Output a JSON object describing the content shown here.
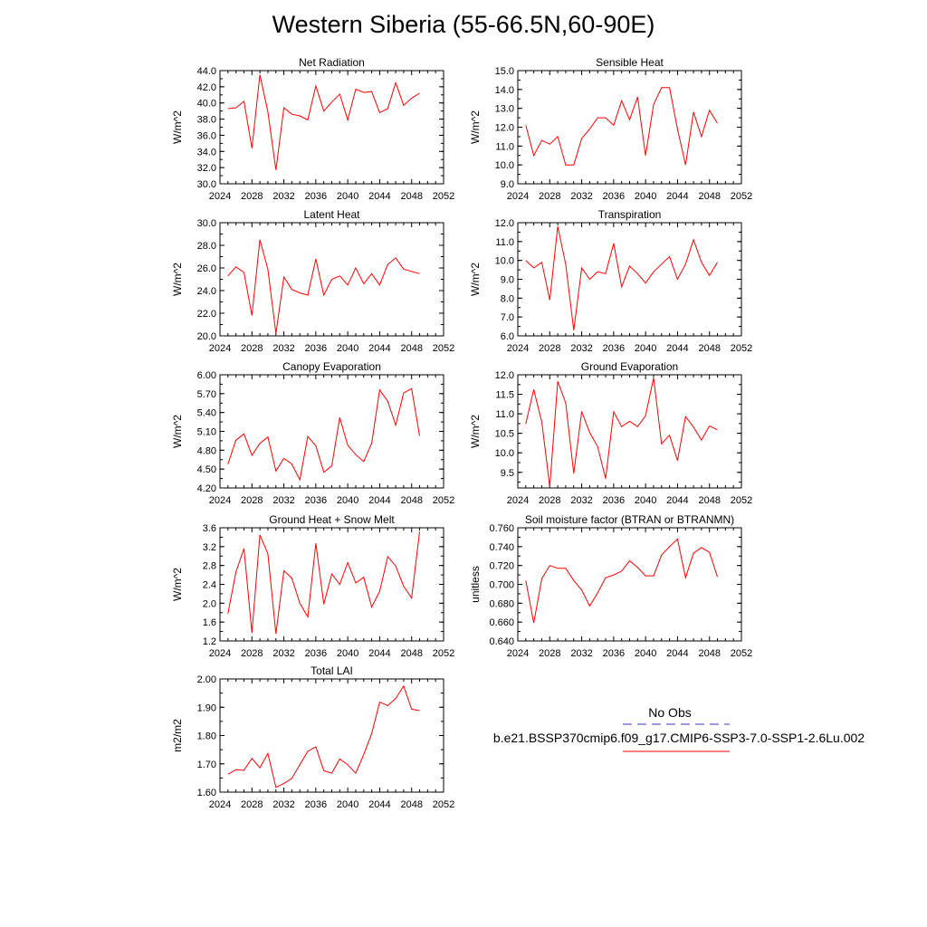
{
  "title": "Western Siberia (55-66.5N,60-90E)",
  "legend": {
    "obs_label": "No Obs",
    "obs_color": "#3a3acc",
    "model_label": "b.e21.BSSP370cmip6.f09_g17.CMIP6-SSP3-7.0-SSP1-2.6Lu.002",
    "model_color": "#ff0000"
  },
  "chart_data": [
    {
      "type": "line",
      "title": "Net Radiation",
      "ylabel": "W/m^2",
      "xlim": [
        2024,
        2052
      ],
      "ylim": [
        30.0,
        44.0
      ],
      "xticks": [
        "2024",
        "2028",
        "2032",
        "2036",
        "2040",
        "2044",
        "2048",
        "2052"
      ],
      "yticks": [
        "30.0",
        "32.0",
        "34.0",
        "36.0",
        "38.0",
        "40.0",
        "42.0",
        "44.0"
      ],
      "x": [
        2025,
        2026,
        2027,
        2028,
        2029,
        2030,
        2031,
        2032,
        2033,
        2034,
        2035,
        2036,
        2037,
        2038,
        2039,
        2040,
        2041,
        2042,
        2043,
        2044,
        2045,
        2046,
        2047,
        2048,
        2049
      ],
      "series": [
        {
          "color": "#ff0000",
          "values": [
            39.3,
            39.4,
            40.2,
            34.4,
            43.5,
            38.9,
            31.7,
            39.4,
            38.6,
            38.4,
            37.9,
            42.1,
            39.0,
            40.1,
            41.1,
            37.9,
            41.7,
            41.3,
            41.4,
            38.8,
            39.3,
            42.5,
            39.7,
            40.6,
            41.2
          ]
        }
      ]
    },
    {
      "type": "line",
      "title": "Sensible Heat",
      "ylabel": "W/m^2",
      "xlim": [
        2024,
        2052
      ],
      "ylim": [
        9.0,
        15.0
      ],
      "xticks": [
        "2024",
        "2028",
        "2032",
        "2036",
        "2040",
        "2044",
        "2048",
        "2052"
      ],
      "yticks": [
        "9.0",
        "10.0",
        "11.0",
        "12.0",
        "13.0",
        "14.0",
        "15.0"
      ],
      "x": [
        2025,
        2026,
        2027,
        2028,
        2029,
        2030,
        2031,
        2032,
        2033,
        2034,
        2035,
        2036,
        2037,
        2038,
        2039,
        2040,
        2041,
        2042,
        2043,
        2044,
        2045,
        2046,
        2047,
        2048,
        2049
      ],
      "series": [
        {
          "color": "#ff0000",
          "values": [
            12.1,
            10.5,
            11.3,
            11.1,
            11.5,
            10.0,
            10.0,
            11.4,
            11.9,
            12.5,
            12.5,
            12.1,
            13.4,
            12.4,
            13.6,
            10.5,
            13.2,
            14.1,
            14.1,
            11.9,
            10.0,
            12.8,
            11.5,
            12.9,
            12.2
          ]
        }
      ]
    },
    {
      "type": "line",
      "title": "Latent Heat",
      "ylabel": "W/m^2",
      "xlim": [
        2024,
        2052
      ],
      "ylim": [
        20.0,
        30.0
      ],
      "xticks": [
        "2024",
        "2028",
        "2032",
        "2036",
        "2040",
        "2044",
        "2048",
        "2052"
      ],
      "yticks": [
        "20.0",
        "22.0",
        "24.0",
        "26.0",
        "28.0",
        "30.0"
      ],
      "x": [
        2025,
        2026,
        2027,
        2028,
        2029,
        2030,
        2031,
        2032,
        2033,
        2034,
        2035,
        2036,
        2037,
        2038,
        2039,
        2040,
        2041,
        2042,
        2043,
        2044,
        2045,
        2046,
        2047,
        2048,
        2049
      ],
      "series": [
        {
          "color": "#ff0000",
          "values": [
            25.3,
            26.1,
            25.6,
            21.8,
            28.5,
            25.9,
            20.2,
            25.2,
            24.1,
            23.8,
            23.6,
            26.8,
            23.6,
            25.0,
            25.3,
            24.5,
            26.0,
            24.6,
            25.5,
            24.5,
            26.3,
            26.9,
            25.9,
            25.7,
            25.5
          ]
        }
      ]
    },
    {
      "type": "line",
      "title": "Transpiration",
      "ylabel": "W/m^2",
      "xlim": [
        2024,
        2052
      ],
      "ylim": [
        6.0,
        12.0
      ],
      "xticks": [
        "2024",
        "2028",
        "2032",
        "2036",
        "2040",
        "2044",
        "2048",
        "2052"
      ],
      "yticks": [
        "6.0",
        "7.0",
        "8.0",
        "9.0",
        "10.0",
        "11.0",
        "12.0"
      ],
      "x": [
        2025,
        2026,
        2027,
        2028,
        2029,
        2030,
        2031,
        2032,
        2033,
        2034,
        2035,
        2036,
        2037,
        2038,
        2039,
        2040,
        2041,
        2042,
        2043,
        2044,
        2045,
        2046,
        2047,
        2048,
        2049
      ],
      "series": [
        {
          "color": "#ff0000",
          "values": [
            10.0,
            9.6,
            9.9,
            7.9,
            11.8,
            9.8,
            6.3,
            9.6,
            9.0,
            9.4,
            9.3,
            10.9,
            8.6,
            9.7,
            9.3,
            8.8,
            9.4,
            9.8,
            10.2,
            9.0,
            9.8,
            11.1,
            9.9,
            9.2,
            9.9
          ]
        }
      ]
    },
    {
      "type": "line",
      "title": "Canopy Evaporation",
      "ylabel": "W/m^2",
      "xlim": [
        2024,
        2052
      ],
      "ylim": [
        4.2,
        6.0
      ],
      "xticks": [
        "2024",
        "2028",
        "2032",
        "2036",
        "2040",
        "2044",
        "2048",
        "2052"
      ],
      "yticks": [
        "4.20",
        "4.50",
        "4.80",
        "5.10",
        "5.40",
        "5.70",
        "6.00"
      ],
      "x": [
        2025,
        2026,
        2027,
        2028,
        2029,
        2030,
        2031,
        2032,
        2033,
        2034,
        2035,
        2036,
        2037,
        2038,
        2039,
        2040,
        2041,
        2042,
        2043,
        2044,
        2045,
        2046,
        2047,
        2048,
        2049
      ],
      "series": [
        {
          "color": "#ff0000",
          "values": [
            4.58,
            4.96,
            5.06,
            4.72,
            4.91,
            5.01,
            4.47,
            4.67,
            4.58,
            4.33,
            5.02,
            4.87,
            4.45,
            4.55,
            5.32,
            4.88,
            4.73,
            4.62,
            4.91,
            5.76,
            5.58,
            5.2,
            5.71,
            5.78,
            5.03
          ]
        }
      ]
    },
    {
      "type": "line",
      "title": "Ground Evaporation",
      "ylabel": "W/m^2",
      "xlim": [
        2024,
        2052
      ],
      "ylim": [
        9.1,
        12.0
      ],
      "xticks": [
        "2024",
        "2028",
        "2032",
        "2036",
        "2040",
        "2044",
        "2048",
        "2052"
      ],
      "yticks": [
        "9.5",
        "10.0",
        "10.5",
        "11.0",
        "11.5",
        "12.0"
      ],
      "x": [
        2025,
        2026,
        2027,
        2028,
        2029,
        2030,
        2031,
        2032,
        2033,
        2034,
        2035,
        2036,
        2037,
        2038,
        2039,
        2040,
        2041,
        2042,
        2043,
        2044,
        2045,
        2046,
        2047,
        2048,
        2049
      ],
      "series": [
        {
          "color": "#ff0000",
          "values": [
            10.74,
            11.62,
            10.79,
            9.13,
            11.83,
            11.28,
            9.47,
            11.06,
            10.52,
            10.16,
            9.34,
            11.05,
            10.67,
            10.81,
            10.67,
            10.95,
            11.92,
            10.23,
            10.45,
            9.8,
            10.93,
            10.66,
            10.33,
            10.69,
            10.59
          ]
        }
      ]
    },
    {
      "type": "line",
      "title": "Ground Heat + Snow Melt",
      "ylabel": "W/m^2",
      "xlim": [
        2024,
        2052
      ],
      "ylim": [
        1.2,
        3.6
      ],
      "xticks": [
        "2024",
        "2028",
        "2032",
        "2036",
        "2040",
        "2044",
        "2048",
        "2052"
      ],
      "yticks": [
        "1.2",
        "1.6",
        "2.0",
        "2.4",
        "2.8",
        "3.2",
        "3.6"
      ],
      "x": [
        2025,
        2026,
        2027,
        2028,
        2029,
        2030,
        2031,
        2032,
        2033,
        2034,
        2035,
        2036,
        2037,
        2038,
        2039,
        2040,
        2041,
        2042,
        2043,
        2044,
        2045,
        2046,
        2047,
        2048,
        2049
      ],
      "series": [
        {
          "color": "#ff0000",
          "values": [
            1.78,
            2.66,
            3.16,
            1.37,
            3.45,
            3.05,
            1.35,
            2.69,
            2.53,
            2.0,
            1.71,
            3.27,
            1.98,
            2.62,
            2.4,
            2.86,
            2.43,
            2.55,
            1.92,
            2.25,
            2.99,
            2.79,
            2.36,
            2.11,
            3.52
          ]
        }
      ]
    },
    {
      "type": "line",
      "title": "Soil moisture factor (BTRAN or BTRANMN)",
      "ylabel": "unitless",
      "xlim": [
        2024,
        2052
      ],
      "ylim": [
        0.64,
        0.76
      ],
      "xticks": [
        "2024",
        "2028",
        "2032",
        "2036",
        "2040",
        "2044",
        "2048",
        "2052"
      ],
      "yticks": [
        "0.640",
        "0.660",
        "0.680",
        "0.700",
        "0.720",
        "0.740",
        "0.760"
      ],
      "x": [
        2025,
        2026,
        2027,
        2028,
        2029,
        2030,
        2031,
        2032,
        2033,
        2034,
        2035,
        2036,
        2037,
        2038,
        2039,
        2040,
        2041,
        2042,
        2043,
        2044,
        2045,
        2046,
        2047,
        2048,
        2049
      ],
      "series": [
        {
          "color": "#ff0000",
          "values": [
            0.704,
            0.659,
            0.706,
            0.72,
            0.717,
            0.717,
            0.704,
            0.694,
            0.677,
            0.691,
            0.707,
            0.71,
            0.714,
            0.725,
            0.718,
            0.709,
            0.709,
            0.731,
            0.74,
            0.748,
            0.707,
            0.733,
            0.739,
            0.734,
            0.708
          ]
        }
      ]
    },
    {
      "type": "line",
      "title": "Total LAI",
      "ylabel": "m2/m2",
      "xlim": [
        2024,
        2052
      ],
      "ylim": [
        1.6,
        2.0
      ],
      "xticks": [
        "2024",
        "2028",
        "2032",
        "2036",
        "2040",
        "2044",
        "2048",
        "2052"
      ],
      "yticks": [
        "1.60",
        "1.70",
        "1.80",
        "1.90",
        "2.00"
      ],
      "x": [
        2025,
        2026,
        2027,
        2028,
        2029,
        2030,
        2031,
        2032,
        2033,
        2034,
        2035,
        2036,
        2037,
        2038,
        2039,
        2040,
        2041,
        2042,
        2043,
        2044,
        2045,
        2046,
        2047,
        2048,
        2049
      ],
      "series": [
        {
          "color": "#ff0000",
          "values": [
            1.663,
            1.679,
            1.677,
            1.719,
            1.686,
            1.737,
            1.617,
            1.63,
            1.649,
            1.697,
            1.744,
            1.76,
            1.676,
            1.667,
            1.717,
            1.697,
            1.667,
            1.733,
            1.807,
            1.918,
            1.906,
            1.931,
            1.975,
            1.893,
            1.888
          ]
        }
      ]
    }
  ]
}
